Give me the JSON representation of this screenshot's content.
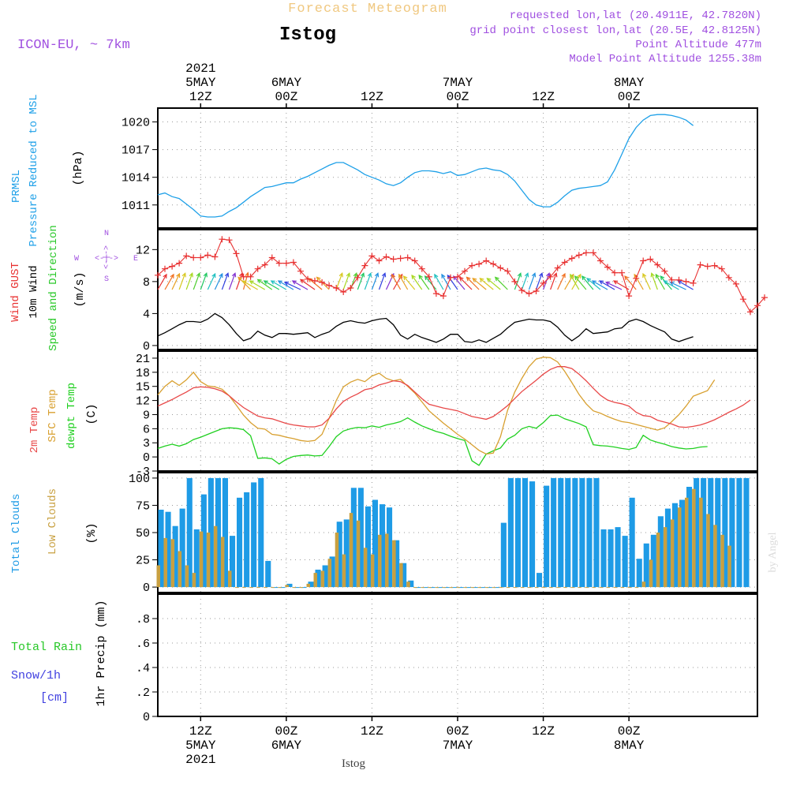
{
  "header": {
    "product": "Forecast Meteogram",
    "station": "Istog",
    "model": "ICON-EU, ~ 7km",
    "requested": "requested lon,lat (20.4911E, 42.7820N)",
    "grid_point": "grid point closest lon,lat (20.5E, 42.8125N)",
    "point_altitude": "Point Altitude 477m",
    "model_point_altitude": "Model Point Altitude 1255.38m"
  },
  "footer": {
    "station": "Istog",
    "credit": "by Angel"
  },
  "colors": {
    "prmsl": "#1ea0e8",
    "gust": "#e83030",
    "wind10m": "#000000",
    "winddir": "#28c828",
    "t2m": "#e84848",
    "tsfc": "#d8a030",
    "dewpt": "#20d020",
    "total_clouds": "#1e9be6",
    "low_clouds": "#c8a040",
    "rain": "#28c828",
    "snow": "#4040e0",
    "compass": "#a050e0",
    "header_purple": "#a050e0"
  },
  "panels_labels": {
    "prmsl": {
      "name": "PRMSL",
      "desc": "Pressure Reduced to MSL",
      "unit": "(hPa)"
    },
    "wind": {
      "gust": "Wind GUST",
      "wind": "10m Wind",
      "speed_dir": "Speed and Direction",
      "unit": "(m/s)",
      "compass": {
        "n": "N",
        "s": "S",
        "w": "W",
        "e": "E",
        "arrow": "<-|->"
      }
    },
    "temp": {
      "t2m": "2m Temp",
      "tsfc": "SFC Temp",
      "dewpt": "dewpt Temp",
      "unit": "(C)"
    },
    "clouds": {
      "total": "Total Clouds",
      "low": "Low Clouds",
      "unit": "(%)"
    },
    "precip": {
      "rain": "Total  Rain",
      "snow": "Snow/1h",
      "snow_unit": "[cm]",
      "axis": "1hr Precip (mm)"
    }
  },
  "time_axis": {
    "top_labels": [
      {
        "hour": 12,
        "lines": [
          "2021",
          "5MAY",
          "12Z"
        ]
      },
      {
        "hour": 24,
        "lines": [
          "6MAY",
          "00Z"
        ]
      },
      {
        "hour": 36,
        "lines": [
          "12Z"
        ]
      },
      {
        "hour": 48,
        "lines": [
          "7MAY",
          "00Z"
        ]
      },
      {
        "hour": 60,
        "lines": [
          "12Z"
        ]
      },
      {
        "hour": 72,
        "lines": [
          "8MAY",
          "00Z"
        ]
      }
    ],
    "bottom_labels": [
      {
        "hour": 12,
        "lines": [
          "12Z",
          "5MAY",
          "2021"
        ]
      },
      {
        "hour": 24,
        "lines": [
          "00Z",
          "6MAY"
        ]
      },
      {
        "hour": 36,
        "lines": [
          "12Z"
        ]
      },
      {
        "hour": 48,
        "lines": [
          "00Z",
          "7MAY"
        ]
      },
      {
        "hour": 60,
        "lines": [
          "12Z"
        ]
      },
      {
        "hour": 72,
        "lines": [
          "00Z",
          "8MAY"
        ]
      }
    ]
  },
  "chart_data": [
    {
      "type": "line",
      "name": "prmsl",
      "x_start": "2021-05-05 06Z",
      "x_step_hours": 1,
      "ylim": [
        1008.5,
        1021.5
      ],
      "yticks": [
        1011,
        1014,
        1017,
        1020
      ],
      "series": [
        {
          "name": "PRMSL",
          "values": [
            1012.1,
            1012.3,
            1011.9,
            1011.7,
            1011.1,
            1010.5,
            1009.8,
            1009.7,
            1009.7,
            1009.8,
            1010.3,
            1010.7,
            1011.3,
            1011.9,
            1012.4,
            1012.9,
            1013.0,
            1013.2,
            1013.4,
            1013.4,
            1013.8,
            1014.1,
            1014.5,
            1014.9,
            1015.3,
            1015.6,
            1015.6,
            1015.2,
            1014.8,
            1014.3,
            1014.0,
            1013.7,
            1013.3,
            1013.1,
            1013.4,
            1014.0,
            1014.5,
            1014.7,
            1014.7,
            1014.6,
            1014.4,
            1014.6,
            1014.2,
            1014.3,
            1014.6,
            1014.9,
            1015.0,
            1014.8,
            1014.7,
            1014.3,
            1013.6,
            1012.6,
            1011.6,
            1011.0,
            1010.8,
            1010.8,
            1011.3,
            1012.0,
            1012.6,
            1012.8,
            1012.9,
            1013.0,
            1013.1,
            1013.5,
            1014.8,
            1016.5,
            1018.2,
            1019.4,
            1020.2,
            1020.7,
            1020.8,
            1020.8,
            1020.7,
            1020.5,
            1020.2,
            1019.6
          ]
        }
      ]
    },
    {
      "type": "line",
      "name": "wind",
      "x_start": "2021-05-05 06Z",
      "x_step_hours": 1,
      "ylim": [
        -0.5,
        14.5
      ],
      "yticks": [
        0,
        4,
        8,
        12
      ],
      "series": [
        {
          "name": "Wind GUST",
          "values": [
            8.8,
            9.6,
            9.9,
            10.3,
            11.2,
            11.0,
            11.0,
            11.3,
            11.1,
            13.3,
            13.2,
            11.5,
            8.6,
            8.6,
            9.6,
            10.1,
            11.0,
            10.3,
            10.3,
            10.4,
            9.3,
            8.3,
            8.1,
            7.9,
            7.5,
            7.2,
            6.7,
            7.2,
            8.5,
            10.0,
            11.2,
            10.6,
            11.1,
            10.8,
            10.9,
            11.0,
            10.6,
            9.6,
            8.6,
            6.5,
            6.2,
            8.5,
            8.6,
            9.3,
            10.0,
            10.2,
            10.6,
            10.2,
            9.7,
            9.3,
            8.0,
            6.9,
            6.5,
            6.8,
            7.8,
            8.6,
            9.7,
            10.4,
            10.9,
            11.3,
            11.6,
            11.6,
            10.6,
            9.8,
            9.1,
            9.1,
            6.2,
            8.4,
            10.6,
            10.8,
            10.1,
            9.3,
            8.2,
            8.2,
            8.0,
            7.8,
            10.1,
            9.9,
            10.0,
            9.6,
            8.5,
            7.7,
            5.8,
            4.2,
            5.0,
            6.0
          ]
        },
        {
          "name": "10m Wind",
          "values": [
            1.2,
            1.6,
            2.1,
            2.6,
            3.0,
            3.0,
            2.9,
            3.3,
            4.0,
            3.5,
            2.6,
            1.5,
            0.6,
            0.9,
            1.8,
            1.3,
            1.0,
            1.5,
            1.5,
            1.4,
            1.5,
            1.6,
            1.0,
            1.4,
            1.7,
            2.4,
            2.9,
            3.1,
            2.9,
            2.8,
            3.1,
            3.3,
            3.4,
            2.6,
            1.3,
            0.8,
            1.4,
            1.0,
            0.7,
            0.4,
            0.8,
            1.4,
            1.4,
            0.5,
            0.4,
            0.7,
            0.4,
            0.9,
            1.4,
            2.2,
            2.9,
            3.1,
            3.3,
            3.2,
            3.2,
            3.0,
            2.3,
            1.3,
            0.6,
            1.2,
            2.1,
            1.5,
            1.6,
            1.7,
            2.1,
            2.2,
            3.0,
            3.3,
            3.0,
            2.5,
            2.1,
            1.7,
            0.8,
            0.5,
            0.8,
            1.1
          ]
        }
      ],
      "wind_arrows": {
        "directions_deg": [
          30,
          30,
          25,
          20,
          20,
          20,
          20,
          25,
          25,
          20,
          20,
          20,
          15,
          315,
          300,
          300,
          305,
          300,
          300,
          300,
          295,
          300,
          305,
          310,
          315,
          20,
          20,
          20,
          20,
          20,
          20,
          20,
          25,
          30,
          330,
          330,
          320,
          325,
          325,
          320,
          330,
          330,
          325,
          320,
          315,
          315,
          310,
          310,
          310,
          315,
          20,
          20,
          20,
          20,
          20,
          20,
          25,
          30,
          30,
          330,
          320,
          320,
          310,
          300,
          300,
          295,
          300,
          320,
          330,
          335,
          340,
          330,
          320,
          300,
          295,
          300
        ]
      }
    },
    {
      "type": "line",
      "name": "temperature",
      "x_start": "2021-05-05 06Z",
      "x_step_hours": 1,
      "ylim": [
        -3,
        22.5
      ],
      "yticks": [
        -3,
        0,
        3,
        6,
        9,
        12,
        15,
        18,
        21
      ],
      "series": [
        {
          "name": "2m Temp",
          "values": [
            10.8,
            11.5,
            12.2,
            13.0,
            13.8,
            14.7,
            14.9,
            14.8,
            14.5,
            14.0,
            13.0,
            11.7,
            10.5,
            9.6,
            8.7,
            8.3,
            8.1,
            7.6,
            7.1,
            6.8,
            6.6,
            6.4,
            6.4,
            6.8,
            8.2,
            10.2,
            11.8,
            12.7,
            13.4,
            14.3,
            14.6,
            15.3,
            15.7,
            16.2,
            16.0,
            15.2,
            13.8,
            12.4,
            11.2,
            10.8,
            10.4,
            10.1,
            9.8,
            9.2,
            8.6,
            8.3,
            8.0,
            8.6,
            9.7,
            10.9,
            12.4,
            13.9,
            15.1,
            16.3,
            17.6,
            18.6,
            19.2,
            19.2,
            18.8,
            17.6,
            16.2,
            14.6,
            13.1,
            12.1,
            11.6,
            11.3,
            10.8,
            9.5,
            8.8,
            8.6,
            7.8,
            7.4,
            7.0,
            6.4,
            6.3,
            6.5,
            6.8,
            7.3,
            7.9,
            8.7,
            9.5,
            10.2,
            11.0,
            12.1
          ]
        },
        {
          "name": "SFC Temp",
          "values": [
            13.2,
            15.0,
            16.2,
            15.2,
            16.4,
            18.0,
            16.0,
            15.1,
            14.9,
            14.4,
            13.0,
            11.0,
            8.9,
            7.3,
            6.1,
            5.9,
            4.8,
            4.6,
            4.2,
            3.9,
            3.5,
            3.3,
            3.5,
            4.8,
            8.2,
            12.0,
            14.9,
            15.9,
            16.5,
            16.0,
            17.2,
            17.8,
            16.7,
            16.2,
            16.5,
            15.0,
            13.6,
            11.7,
            9.8,
            8.5,
            7.2,
            6.0,
            4.8,
            3.8,
            2.6,
            1.4,
            0.6,
            0.8,
            4.3,
            9.9,
            13.8,
            16.7,
            19.2,
            20.8,
            21.2,
            21.1,
            20.2,
            18.2,
            15.8,
            13.3,
            11.3,
            9.8,
            9.3,
            8.6,
            8.0,
            7.5,
            7.3,
            6.9,
            6.5,
            6.1,
            5.7,
            6.2,
            7.5,
            9.0,
            10.8,
            12.9,
            13.5,
            14.1,
            16.4
          ]
        },
        {
          "name": "dewpt Temp",
          "values": [
            1.8,
            2.3,
            2.7,
            2.3,
            2.8,
            3.7,
            4.2,
            4.8,
            5.4,
            6.0,
            6.2,
            6.1,
            5.8,
            4.5,
            -0.3,
            -0.2,
            -0.4,
            -1.5,
            -0.5,
            0.1,
            0.3,
            0.4,
            0.2,
            0.3,
            2.2,
            4.3,
            5.5,
            6.0,
            6.3,
            6.2,
            6.6,
            6.3,
            6.8,
            7.1,
            7.5,
            8.3,
            7.4,
            6.6,
            6.0,
            5.4,
            5.0,
            4.4,
            3.9,
            3.5,
            -0.8,
            -1.8,
            0.6,
            1.3,
            1.9,
            3.8,
            4.6,
            6.0,
            6.5,
            6.1,
            7.3,
            8.8,
            8.9,
            8.1,
            7.6,
            7.1,
            6.4,
            2.6,
            2.4,
            2.3,
            2.1,
            1.8,
            1.6,
            2.0,
            4.6,
            3.6,
            3.1,
            2.7,
            2.2,
            1.9,
            1.7,
            1.8,
            2.1,
            2.2
          ]
        }
      ]
    },
    {
      "type": "bar",
      "name": "clouds",
      "x_start": "2021-05-05 06Z",
      "x_step_hours": 1,
      "ylim": [
        -5,
        105
      ],
      "yticks": [
        0,
        25,
        50,
        75,
        100
      ],
      "series": [
        {
          "name": "Total Clouds",
          "values": [
            71,
            69,
            56,
            72,
            100,
            53,
            85,
            100,
            100,
            100,
            47,
            82,
            87,
            96,
            100,
            24,
            0,
            0,
            3,
            0,
            0,
            5,
            16,
            20,
            28,
            60,
            62,
            91,
            91,
            74,
            80,
            76,
            73,
            43,
            22,
            6,
            0,
            0,
            0,
            0,
            0,
            0,
            0,
            0,
            0,
            0,
            0,
            0,
            59,
            100,
            100,
            100,
            97,
            13,
            93,
            100,
            100,
            100,
            100,
            100,
            100,
            100,
            53,
            53,
            55,
            47,
            82,
            26,
            40,
            48,
            65,
            72,
            77,
            80,
            92,
            100,
            100,
            100,
            100,
            100,
            100,
            100,
            100
          ]
        },
        {
          "name": "Low Clouds",
          "values": [
            20,
            45,
            44,
            33,
            20,
            13,
            51,
            50,
            56,
            46,
            15,
            0,
            0,
            0,
            0,
            0,
            0,
            0,
            2,
            0,
            0,
            3,
            13,
            15,
            26,
            50,
            30,
            68,
            61,
            36,
            30,
            48,
            49,
            43,
            22,
            5,
            0,
            0,
            0,
            0,
            0,
            0,
            0,
            0,
            0,
            0,
            0,
            0,
            0,
            0,
            0,
            0,
            0,
            0,
            0,
            0,
            0,
            0,
            0,
            0,
            0,
            0,
            0,
            0,
            0,
            0,
            0,
            0,
            5,
            25,
            50,
            55,
            62,
            73,
            82,
            90,
            82,
            67,
            57,
            48,
            38
          ]
        }
      ]
    },
    {
      "type": "bar",
      "name": "precipitation",
      "x_start": "2021-05-05 06Z",
      "x_step_hours": 1,
      "ylim": [
        0,
        1.0
      ],
      "yticks": [
        0,
        0.2,
        0.4,
        0.6,
        0.8
      ],
      "series": [
        {
          "name": "Total Rain",
          "values": []
        },
        {
          "name": "Snow/1h",
          "values": []
        }
      ]
    }
  ]
}
